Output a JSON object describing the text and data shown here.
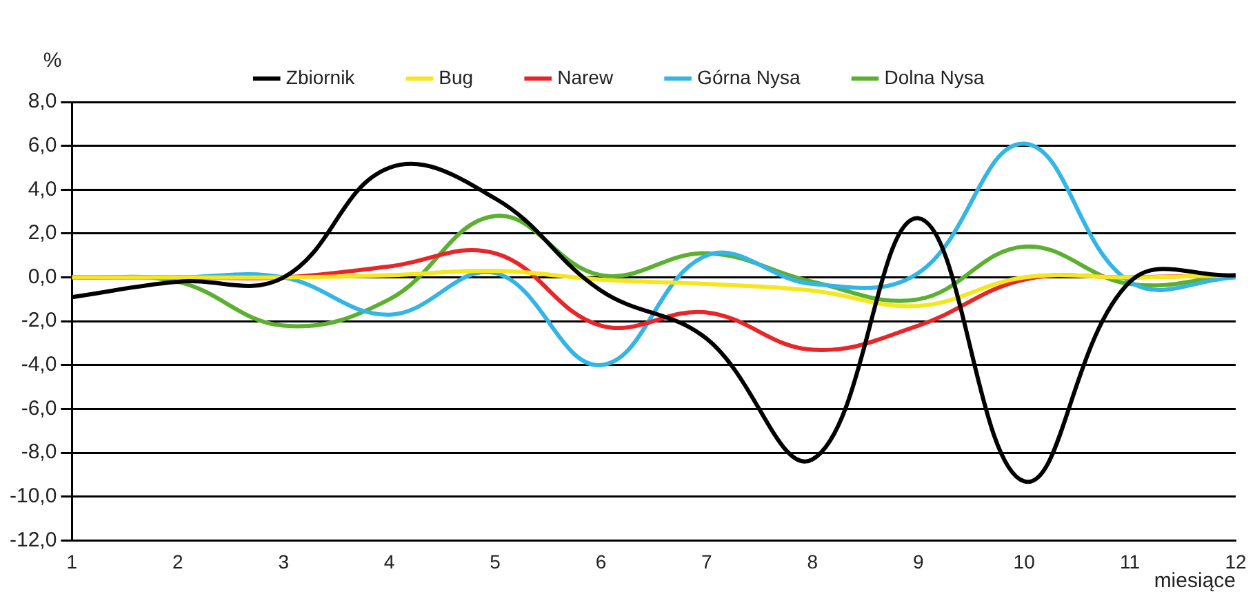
{
  "chart_data": {
    "type": "line",
    "xlabel": "miesiące",
    "ylabel": "%",
    "x": [
      1,
      2,
      3,
      4,
      5,
      6,
      7,
      8,
      9,
      10,
      11,
      12
    ],
    "series": [
      {
        "name": "Zbiornik",
        "color": "#000000",
        "values": [
          -0.9,
          -0.2,
          0.0,
          5.0,
          3.6,
          -0.6,
          -2.8,
          -8.3,
          2.7,
          -9.3,
          -0.2,
          0.1
        ]
      },
      {
        "name": "Bug",
        "color": "#f5e61e",
        "values": [
          0.0,
          0.0,
          0.0,
          0.1,
          0.3,
          -0.1,
          -0.3,
          -0.6,
          -1.3,
          0.0,
          0.0,
          0.1
        ]
      },
      {
        "name": "Narew",
        "color": "#e8262a",
        "values": [
          0.0,
          0.0,
          0.0,
          0.5,
          1.1,
          -2.2,
          -1.6,
          -3.3,
          -2.2,
          -0.1,
          0.0,
          0.1
        ]
      },
      {
        "name": "Górna Nysa",
        "color": "#33b5e5",
        "values": [
          0.0,
          0.0,
          0.0,
          -1.7,
          0.2,
          -4.0,
          1.0,
          -0.3,
          0.2,
          6.1,
          -0.2,
          0.0
        ]
      },
      {
        "name": "Dolna Nysa",
        "color": "#5cb030",
        "values": [
          0.0,
          -0.2,
          -2.2,
          -1.0,
          2.8,
          0.1,
          1.1,
          -0.2,
          -1.0,
          1.4,
          -0.3,
          0.1
        ]
      }
    ],
    "xlim": [
      1,
      12
    ],
    "xticks": [
      1,
      2,
      3,
      4,
      5,
      6,
      7,
      8,
      9,
      10,
      11,
      12
    ],
    "ylim": [
      -12,
      8
    ],
    "yticks": [
      {
        "value": 8,
        "label": "8,0"
      },
      {
        "value": 6,
        "label": "6,0"
      },
      {
        "value": 4,
        "label": "4,0"
      },
      {
        "value": 2,
        "label": "2,0"
      },
      {
        "value": 0,
        "label": "0,0"
      },
      {
        "value": -2,
        "label": "-2,0"
      },
      {
        "value": -4,
        "label": "-4,0"
      },
      {
        "value": -6,
        "label": "-6,0"
      },
      {
        "value": -8,
        "label": "-8,0"
      },
      {
        "value": -10,
        "label": "-10,0"
      },
      {
        "value": -12,
        "label": "-12,0"
      }
    ],
    "grid": "y",
    "legend": "top",
    "marker": "none",
    "line_style": "solid"
  }
}
